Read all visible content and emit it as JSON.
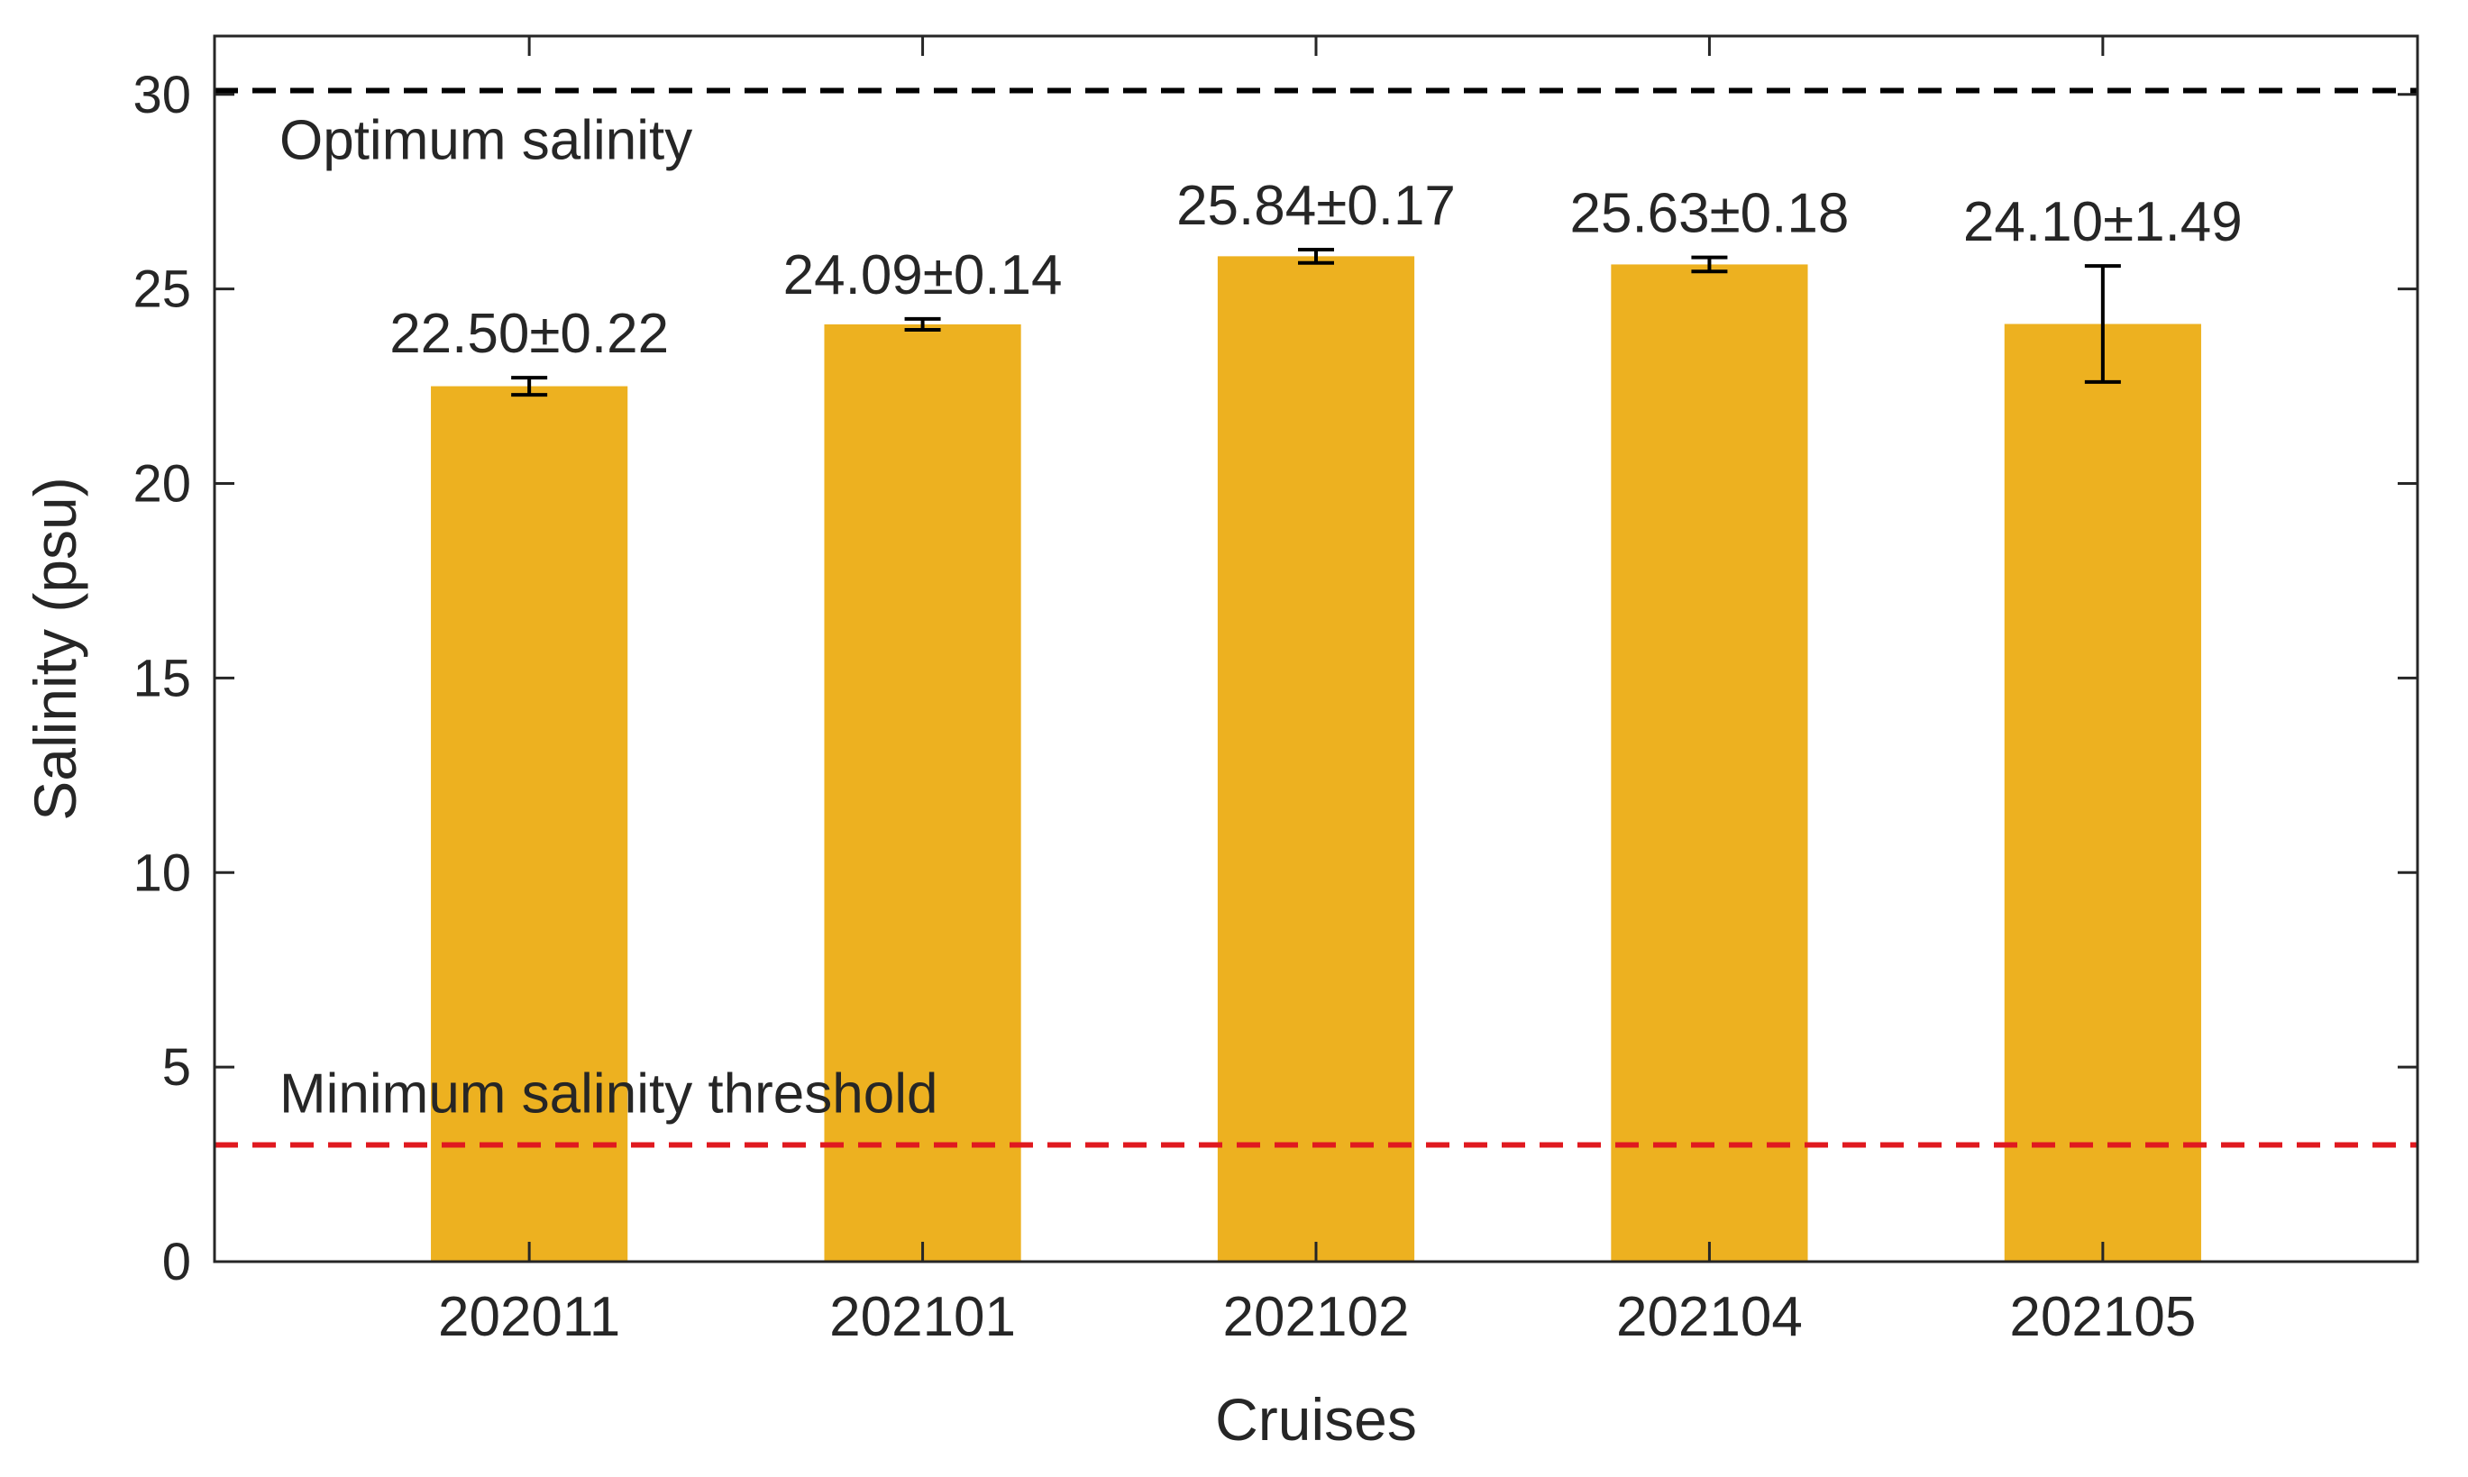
{
  "chart_data": {
    "type": "bar",
    "title": "",
    "xlabel": "Cruises",
    "ylabel": "Salinity (psu)",
    "ylim": [
      0,
      31.5
    ],
    "yticks": [
      0,
      5,
      10,
      15,
      20,
      25,
      30
    ],
    "grid": false,
    "categories": [
      "202011",
      "202101",
      "202102",
      "202104",
      "202105"
    ],
    "values": [
      22.5,
      24.09,
      25.84,
      25.63,
      24.1
    ],
    "errors": [
      0.22,
      0.14,
      0.17,
      0.18,
      1.49
    ],
    "data_labels": [
      "22.50±0.22",
      "24.09±0.14",
      "25.84±0.17",
      "25.63±0.18",
      "24.10±1.49"
    ],
    "bar_color": "#EDB120",
    "reference_lines": [
      {
        "name": "optimum",
        "value": 30.1,
        "label": "Optimum salinity",
        "color": "#000000"
      },
      {
        "name": "minimum",
        "value": 3,
        "label": "Minimum salinity threshold",
        "color": "#E0191F"
      }
    ]
  }
}
